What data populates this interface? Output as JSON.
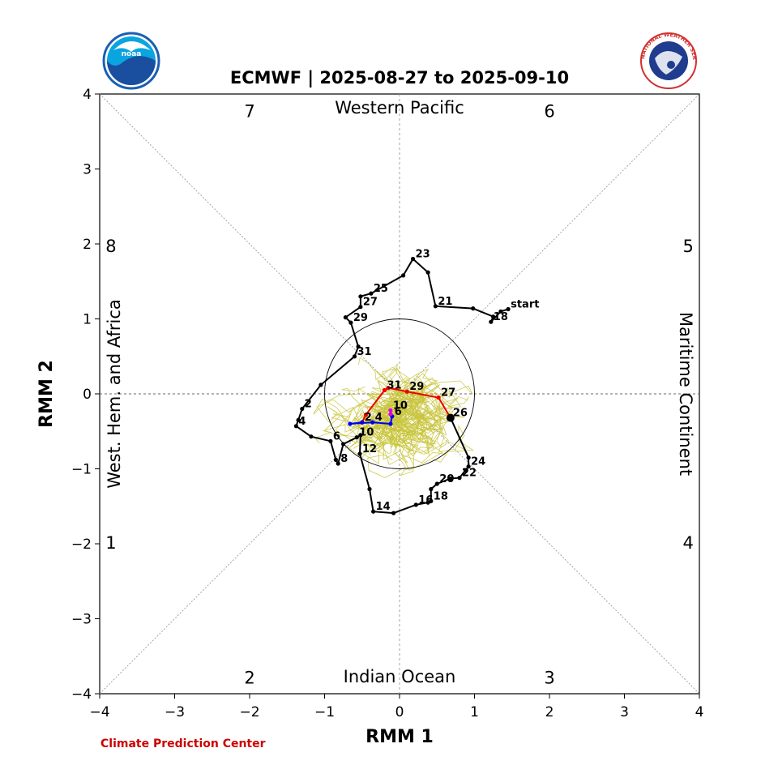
{
  "chart_data": {
    "type": "line",
    "title": "ECMWF | 2025-08-27 to 2025-09-10",
    "xlabel": "RMM 1",
    "ylabel": "RMM 2",
    "xlim": [
      -4,
      4
    ],
    "ylim": [
      -4,
      4
    ],
    "x_ticks": [
      "−4",
      "−3",
      "−2",
      "−1",
      "0",
      "1",
      "2",
      "3",
      "4"
    ],
    "y_ticks": [
      "−4",
      "−3",
      "−2",
      "−1",
      "0",
      "1",
      "2",
      "3",
      "4"
    ],
    "phase_labels": [
      {
        "label": "1",
        "x": -3.85,
        "y": -1.98
      },
      {
        "label": "2",
        "x": -2.0,
        "y": -3.78
      },
      {
        "label": "3",
        "x": 2.0,
        "y": -3.78
      },
      {
        "label": "4",
        "x": 3.85,
        "y": -1.98
      },
      {
        "label": "5",
        "x": 3.85,
        "y": 1.98
      },
      {
        "label": "6",
        "x": 2.0,
        "y": 3.78
      },
      {
        "label": "7",
        "x": -2.0,
        "y": 3.78
      },
      {
        "label": "8",
        "x": -3.85,
        "y": 1.98
      }
    ],
    "region_labels": {
      "top": "Western Pacific",
      "bottom": "Indian Ocean",
      "left": "West. Hem. and Africa",
      "right": "Maritime Continent"
    },
    "series": [
      {
        "color": "#000000",
        "points": [
          {
            "x": 1.45,
            "y": 1.13,
            "label": "start"
          },
          {
            "x": 1.35,
            "y": 1.1,
            "label": ""
          },
          {
            "x": 1.22,
            "y": 0.96,
            "label": "18"
          },
          {
            "x": 1.25,
            "y": 1.03,
            "label": ""
          },
          {
            "x": 0.98,
            "y": 1.14,
            "label": ""
          },
          {
            "x": 0.48,
            "y": 1.17,
            "label": "21"
          },
          {
            "x": 0.38,
            "y": 1.62,
            "label": ""
          },
          {
            "x": 0.18,
            "y": 1.8,
            "label": "23"
          },
          {
            "x": 0.05,
            "y": 1.58,
            "label": ""
          },
          {
            "x": -0.38,
            "y": 1.34,
            "label": "25"
          },
          {
            "x": -0.52,
            "y": 1.3,
            "label": ""
          },
          {
            "x": -0.52,
            "y": 1.16,
            "label": "27"
          },
          {
            "x": -0.72,
            "y": 1.02,
            "label": ""
          },
          {
            "x": -0.65,
            "y": 0.95,
            "label": "29"
          },
          {
            "x": -0.55,
            "y": 0.63,
            "label": ""
          },
          {
            "x": -0.6,
            "y": 0.5,
            "label": "31"
          },
          {
            "x": -1.05,
            "y": 0.12,
            "label": ""
          },
          {
            "x": -1.3,
            "y": -0.2,
            "label": "2"
          },
          {
            "x": -1.35,
            "y": -0.35,
            "label": ""
          },
          {
            "x": -1.38,
            "y": -0.43,
            "label": "4"
          },
          {
            "x": -1.18,
            "y": -0.57,
            "label": ""
          },
          {
            "x": -0.92,
            "y": -0.63,
            "label": "6"
          },
          {
            "x": -0.85,
            "y": -0.88,
            "label": ""
          },
          {
            "x": -0.82,
            "y": -0.93,
            "label": "8"
          },
          {
            "x": -0.75,
            "y": -0.67,
            "label": ""
          },
          {
            "x": -0.57,
            "y": -0.58,
            "label": "10"
          },
          {
            "x": -0.52,
            "y": -0.55,
            "label": ""
          },
          {
            "x": -0.53,
            "y": -0.8,
            "label": "12"
          },
          {
            "x": -0.4,
            "y": -1.27,
            "label": ""
          },
          {
            "x": -0.35,
            "y": -1.57,
            "label": "14"
          },
          {
            "x": -0.08,
            "y": -1.59,
            "label": ""
          },
          {
            "x": 0.22,
            "y": -1.48,
            "label": "16"
          },
          {
            "x": 0.38,
            "y": -1.45,
            "label": ""
          },
          {
            "x": 0.42,
            "y": -1.43,
            "label": "18"
          },
          {
            "x": 0.42,
            "y": -1.27,
            "label": ""
          },
          {
            "x": 0.5,
            "y": -1.2,
            "label": "20"
          },
          {
            "x": 0.68,
            "y": -1.13,
            "label": ""
          },
          {
            "x": 0.8,
            "y": -1.12,
            "label": "22"
          },
          {
            "x": 0.88,
            "y": -1.02,
            "label": ""
          },
          {
            "x": 0.92,
            "y": -0.97,
            "label": "24"
          },
          {
            "x": 0.92,
            "y": -0.85,
            "label": ""
          },
          {
            "x": 0.68,
            "y": -0.32,
            "label": "26"
          }
        ]
      },
      {
        "color": "#ee0000",
        "points": [
          {
            "x": 0.68,
            "y": -0.32,
            "label": ""
          },
          {
            "x": 0.52,
            "y": -0.05,
            "label": "27"
          },
          {
            "x": 0.1,
            "y": 0.03,
            "label": "29"
          },
          {
            "x": -0.15,
            "y": 0.08,
            "label": ""
          },
          {
            "x": -0.2,
            "y": 0.05,
            "label": "31"
          },
          {
            "x": -0.45,
            "y": -0.28,
            "label": ""
          },
          {
            "x": -0.5,
            "y": -0.38,
            "label": ""
          }
        ]
      },
      {
        "color": "#0000ee",
        "points": [
          {
            "x": -0.5,
            "y": -0.38,
            "label": "2"
          },
          {
            "x": -0.66,
            "y": -0.4,
            "label": ""
          },
          {
            "x": -0.36,
            "y": -0.38,
            "label": "4"
          },
          {
            "x": -0.12,
            "y": -0.4,
            "label": ""
          },
          {
            "x": -0.1,
            "y": -0.3,
            "label": "6"
          }
        ]
      },
      {
        "color": "#dd00dd",
        "points": [
          {
            "x": -0.12,
            "y": -0.27,
            "label": ""
          },
          {
            "x": -0.12,
            "y": -0.22,
            "label": "10"
          }
        ]
      }
    ],
    "ensemble_color": "#c8c43a",
    "circle_radius": 1,
    "grid": true
  },
  "credit": "Climate Prediction Center",
  "logos": {
    "left": "noaa-logo",
    "right": "national-weather-service-logo",
    "left_text": "noaa",
    "right_text": "NATIONAL WEATHER SERVICE"
  }
}
